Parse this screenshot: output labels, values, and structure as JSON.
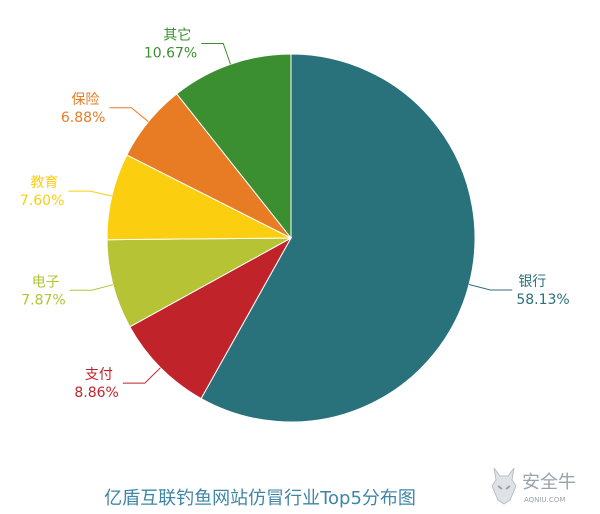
{
  "chart_data": {
    "type": "pie",
    "title": "亿盾互联钓鱼网站仿冒行业Top5分布图",
    "slices": [
      {
        "label": "银行",
        "value": 58.13,
        "display": "58.13%",
        "color": "#29727b"
      },
      {
        "label": "支付",
        "value": 8.86,
        "display": "8.86%",
        "color": "#c1232b"
      },
      {
        "label": "电子",
        "value": 7.87,
        "display": "7.87%",
        "color": "#b5c334"
      },
      {
        "label": "教育",
        "value": 7.6,
        "display": "7.60%",
        "color": "#fcce10"
      },
      {
        "label": "保险",
        "value": 6.88,
        "display": "6.88%",
        "color": "#e87c25"
      },
      {
        "label": "其它",
        "value": 10.67,
        "display": "10.67%",
        "color": "#3b8f31"
      }
    ],
    "start_direction": "top",
    "clockwise": true
  },
  "watermark": {
    "text": "安全牛",
    "subtext": "AQNIU.COM",
    "color": "#9aa3ab"
  }
}
